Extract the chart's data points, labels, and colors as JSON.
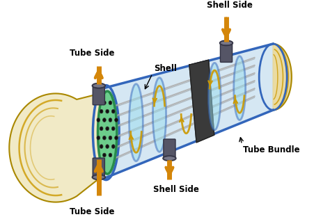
{
  "bg_color": "#ffffff",
  "labels": {
    "tube_side_top": "Tube Side",
    "tube_side_bottom": "Tube Side",
    "shell_label": "Shell",
    "shell_side_top": "Shell Side",
    "shell_side_bottom": "Shell Side",
    "tube_bundle": "Tube Bundle"
  },
  "arrow_color": "#D4860A",
  "shell_fill": "#c8dff0",
  "shell_edge": "#3366bb",
  "shell_inner_fill": "#d8eef8",
  "tube_sheet_fill": "#66cc88",
  "tube_sheet_edge": "#228844",
  "cap_fill": "#e8d898",
  "cap_edge": "#aa8800",
  "cap_inner": "#f5e8b0",
  "band_fill": "#444444",
  "band_edge": "#222222",
  "tube_color": "#b0b0b0",
  "tube_edge": "#888888",
  "nozzle_fill": "#555566",
  "nozzle_edge": "#333344",
  "text_color": "#000000",
  "label_fontsize": 8.5,
  "label_fontweight": "bold",
  "baffle_color": "#3366bb",
  "flow_arrow_color": "#cc9900"
}
